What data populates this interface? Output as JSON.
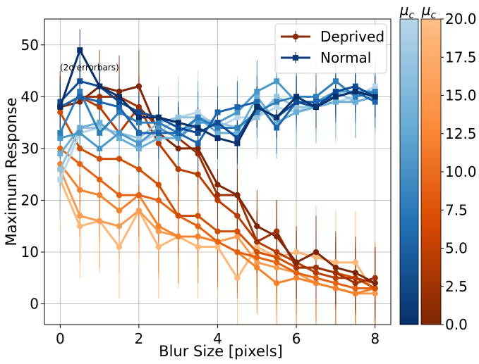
{
  "chart_data": {
    "type": "line",
    "xlabel": "Blur Size [pixels]",
    "ylabel": "Maximum Response",
    "xlim": [
      -0.4,
      8.4
    ],
    "ylim": [
      -4,
      55
    ],
    "xticks": [
      0,
      2,
      4,
      6,
      8
    ],
    "yticks": [
      0,
      10,
      20,
      30,
      40,
      50
    ],
    "grid": true,
    "annotation": "(2σ errorbars)",
    "legend": {
      "placement": "top-right",
      "entries": [
        {
          "label": "Deprived",
          "color": "#8a2c0c",
          "marker": "circle"
        },
        {
          "label": "Normal",
          "color": "#0a3a78",
          "marker": "square"
        }
      ]
    },
    "x": [
      0,
      0.5,
      1,
      1.5,
      2,
      2.5,
      3,
      3.5,
      4,
      4.5,
      5,
      5.5,
      6,
      6.5,
      7,
      7.5,
      8
    ],
    "series_groups": [
      {
        "name": "Deprived",
        "marker": "circle",
        "series": [
          {
            "mu_c": 0,
            "color": "#7f2704",
            "err": 7,
            "values": [
              38,
              39,
              42,
              41,
              42,
              33,
              30,
              30,
              23,
              21,
              15,
              13,
              8,
              10,
              7,
              6,
              4
            ]
          },
          {
            "mu_c": 1,
            "color": "#9e3104",
            "err": 6,
            "values": [
              38,
              40,
              40,
              40,
              38,
              34,
              32,
              29,
              21,
              21,
              12,
              14,
              7,
              7,
              6,
              4,
              5
            ]
          },
          {
            "mu_c": 2,
            "color": "#b83d02",
            "err": 6,
            "values": [
              38,
              40,
              38,
              33,
              38,
              31,
              26,
              25,
              20,
              17,
              12,
              10,
              8,
              6,
              5,
              5,
              4
            ]
          },
          {
            "mu_c": 3,
            "color": "#d14f03",
            "err": 7,
            "values": [
              37,
              30,
              28,
              28,
              26,
              23,
              17,
              17,
              14,
              14,
              10,
              9,
              7,
              7,
              6,
              5,
              3
            ]
          },
          {
            "mu_c": 4,
            "color": "#e46210",
            "err": 8,
            "values": [
              30,
              27,
              24,
              21,
              21,
              20,
              17,
              15,
              12,
              10,
              9,
              8,
              6,
              5,
              4,
              3,
              3
            ]
          },
          {
            "mu_c": 5,
            "color": "#f4822b",
            "err": 9,
            "values": [
              27,
              22,
              21,
              18,
              21,
              15,
              13,
              13,
              12,
              10,
              7,
              4,
              5,
              4,
              3,
              2,
              3
            ]
          },
          {
            "mu_c": 6,
            "color": "#f99b4f",
            "err": 9,
            "values": [
              26,
              17,
              16,
              15,
              18,
              14,
              13,
              13,
              12,
              13,
              8,
              7,
              6,
              4,
              3,
              2,
              2
            ]
          },
          {
            "mu_c": 7,
            "color": "#fdb879",
            "err": 10,
            "values": [
              24,
              15,
              16,
              11,
              18,
              11,
              13,
              11,
              11,
              5,
              11,
              9,
              10,
              9,
              8,
              8,
              2
            ]
          }
        ]
      },
      {
        "name": "Normal",
        "marker": "square",
        "series": [
          {
            "mu_c": 0,
            "color": "#08306b",
            "err": 4,
            "values": [
              38,
              49,
              42,
              40,
              36,
              36,
              35,
              34,
              32,
              31,
              38,
              36,
              40,
              38,
              40,
              41,
              40
            ]
          },
          {
            "mu_c": 1,
            "color": "#0c4a93",
            "err": 4,
            "values": [
              39,
              43,
              42,
              39,
              37,
              36,
              34,
              33,
              35,
              32,
              38,
              36,
              39,
              38,
              41,
              42,
              40
            ]
          },
          {
            "mu_c": 2,
            "color": "#1c64ad",
            "err": 5,
            "values": [
              38,
              40,
              39,
              38,
              33,
              33,
              33,
              31,
              37,
              38,
              39,
              34,
              39,
              39,
              40,
              41,
              39
            ]
          },
          {
            "mu_c": 3,
            "color": "#2e7ebc",
            "err": 5,
            "values": [
              33,
              41,
              33,
              37,
              35,
              35,
              33,
              36,
              34,
              34,
              37,
              39,
              40,
              40,
              43,
              40,
              41
            ]
          },
          {
            "mu_c": 4,
            "color": "#4a98c9",
            "err": 6,
            "values": [
              32,
              33,
              30,
              33,
              31,
              34,
              32,
              35,
              35,
              37,
              41,
              43,
              39,
              39,
              41,
              41,
              41
            ]
          },
          {
            "mu_c": 5,
            "color": "#6aaed6",
            "err": 7,
            "values": [
              29,
              34,
              35,
              32,
              30,
              32,
              32,
              36,
              33,
              33,
              40,
              35,
              37,
              38,
              39,
              39,
              40
            ]
          },
          {
            "mu_c": 6,
            "color": "#93c4de",
            "err": 7,
            "values": [
              26,
              34,
              34,
              33,
              32,
              35,
              36,
              36,
              35,
              34,
              36,
              40,
              38,
              38,
              41,
              39,
              40
            ]
          },
          {
            "mu_c": 7,
            "color": "#b7d6ea",
            "err": 8,
            "values": [
              24,
              33,
              34,
              33,
              31,
              33,
              36,
              37,
              34,
              36,
              36,
              38,
              37,
              39,
              39,
              40,
              42
            ]
          }
        ]
      }
    ],
    "colorbars": [
      {
        "title": "μ_c",
        "cmap": "Blues_r",
        "range": [
          0,
          20
        ],
        "ticks": [],
        "colors": [
          "#08306b",
          "#2171b5",
          "#6baed6",
          "#b7d6ea"
        ]
      },
      {
        "title": "μ_c",
        "cmap": "Oranges_r",
        "range": [
          0,
          20
        ],
        "ticks": [
          "0.0",
          "2.5",
          "5.0",
          "7.5",
          "10.0",
          "12.5",
          "15.0",
          "17.5",
          "20.0"
        ],
        "colors": [
          "#7f2704",
          "#d94801",
          "#fd8d3c",
          "#fdbe85"
        ]
      }
    ]
  }
}
